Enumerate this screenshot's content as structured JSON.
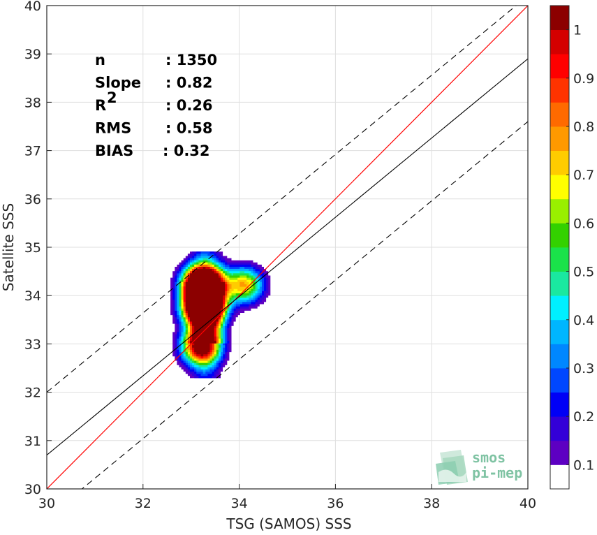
{
  "chart_data": {
    "type": "contour",
    "xlabel": "TSG (SAMOS) SSS",
    "ylabel": "Satellite SSS",
    "xlim": [
      30,
      40
    ],
    "ylim": [
      30,
      40
    ],
    "xticks": [
      "30",
      "32",
      "34",
      "36",
      "38",
      "40"
    ],
    "yticks": [
      "30",
      "31",
      "32",
      "33",
      "34",
      "35",
      "36",
      "37",
      "38",
      "39",
      "40"
    ],
    "grid": true,
    "stats": [
      {
        "name": "n",
        "value": ": 1350"
      },
      {
        "name": "Slope",
        "value": ": 0.82"
      },
      {
        "name": "R",
        "sup": "2",
        "value": ": 0.26"
      },
      {
        "name": "RMS",
        "value": ": 0.58"
      },
      {
        "name": "BIAS",
        "value": ": 0.32"
      }
    ],
    "identity_line": {
      "color": "#ff0000",
      "from": [
        30,
        30
      ],
      "to": [
        40,
        40
      ]
    },
    "regression_line": {
      "slope": 0.82,
      "intercept": 6.1,
      "color": "#000000"
    },
    "confidence_band_offset": 1.3,
    "density_peaks": [
      {
        "x": 33.25,
        "y": 34.25,
        "weight": 1.0
      },
      {
        "x": 33.25,
        "y": 33.75,
        "weight": 0.95
      },
      {
        "x": 33.2,
        "y": 32.95,
        "weight": 0.6
      },
      {
        "x": 34.1,
        "y": 34.22,
        "weight": 0.42
      }
    ],
    "colorbar": {
      "min": 0,
      "max": 1,
      "tick_labels": [
        "0.1",
        "0.2",
        "0.3",
        "0.4",
        "0.5",
        "0.6",
        "0.7",
        "0.8",
        "0.9",
        "1"
      ],
      "tick_values": [
        0.1,
        0.2,
        0.3,
        0.4,
        0.5,
        0.6,
        0.7,
        0.8,
        0.9,
        1.0
      ],
      "colors": [
        "#ffffff",
        "#5d00c2",
        "#3300d8",
        "#0000f6",
        "#0047ff",
        "#0087ff",
        "#00b6ff",
        "#00f0ff",
        "#1ae8a0",
        "#1ae24a",
        "#33d100",
        "#99ef00",
        "#ffff00",
        "#ffcc00",
        "#ff9900",
        "#ff6a00",
        "#ff3300",
        "#ff0000",
        "#d40000",
        "#8c0000"
      ]
    }
  },
  "logo": {
    "line1": "smos",
    "line2": "pi-mep"
  }
}
